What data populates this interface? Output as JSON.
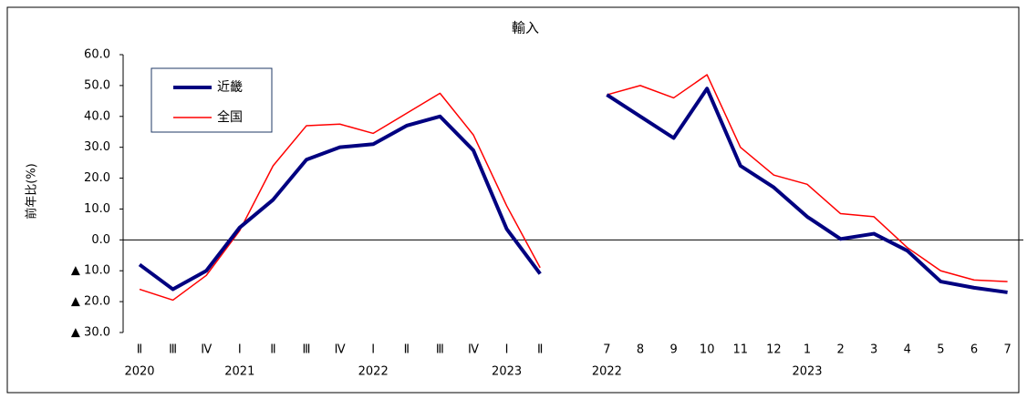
{
  "chart_data": {
    "type": "line",
    "title": "輸入",
    "y_label": "前年比(%)",
    "categories": [
      "Ⅱ",
      "Ⅲ",
      "Ⅳ",
      "Ⅰ",
      "Ⅱ",
      "Ⅲ",
      "Ⅳ",
      "Ⅰ",
      "Ⅱ",
      "Ⅲ",
      "Ⅳ",
      "Ⅰ",
      "Ⅱ",
      null,
      "7",
      "8",
      "9",
      "10",
      "11",
      "12",
      "1",
      "2",
      "3",
      "4",
      "5",
      "6",
      "7"
    ],
    "year_labels": [
      "2020",
      null,
      null,
      "2021",
      null,
      null,
      null,
      "2022",
      null,
      null,
      null,
      "2023",
      null,
      null,
      "2022",
      null,
      null,
      null,
      null,
      null,
      "2023",
      null,
      null,
      null,
      null,
      null,
      null
    ],
    "series": [
      {
        "name": "近畿",
        "color": "#000080",
        "values": [
          -8,
          -16,
          -10,
          4,
          13,
          26,
          30,
          31,
          37,
          40,
          29,
          3.5,
          -11,
          null,
          47,
          40,
          33,
          49,
          24,
          17,
          7.5,
          0.3,
          2,
          -3.5,
          -13.5,
          -15.5,
          -17
        ]
      },
      {
        "name": "全国",
        "color": "#ff0000",
        "values": [
          -16,
          -19.5,
          -11.5,
          3,
          24,
          37,
          37.5,
          34.5,
          41,
          47.5,
          34,
          11,
          -9,
          null,
          47,
          50,
          46,
          53.5,
          30,
          21,
          18,
          8.5,
          7.5,
          -2.5,
          -10,
          -13,
          -13.5
        ]
      }
    ],
    "ylim": [
      -30,
      60
    ],
    "yticks": [
      {
        "value": -30,
        "label": "▲ 30.0"
      },
      {
        "value": -20,
        "label": "▲ 20.0"
      },
      {
        "value": -10,
        "label": "▲ 10.0"
      },
      {
        "value": 0,
        "label": "0.0"
      },
      {
        "value": 10,
        "label": "10.0"
      },
      {
        "value": 20,
        "label": "20.0"
      },
      {
        "value": 30,
        "label": "30.0"
      },
      {
        "value": 40,
        "label": "40.0"
      },
      {
        "value": 50,
        "label": "50.0"
      },
      {
        "value": 60,
        "label": "60.0"
      }
    ],
    "legend": "upper left"
  }
}
